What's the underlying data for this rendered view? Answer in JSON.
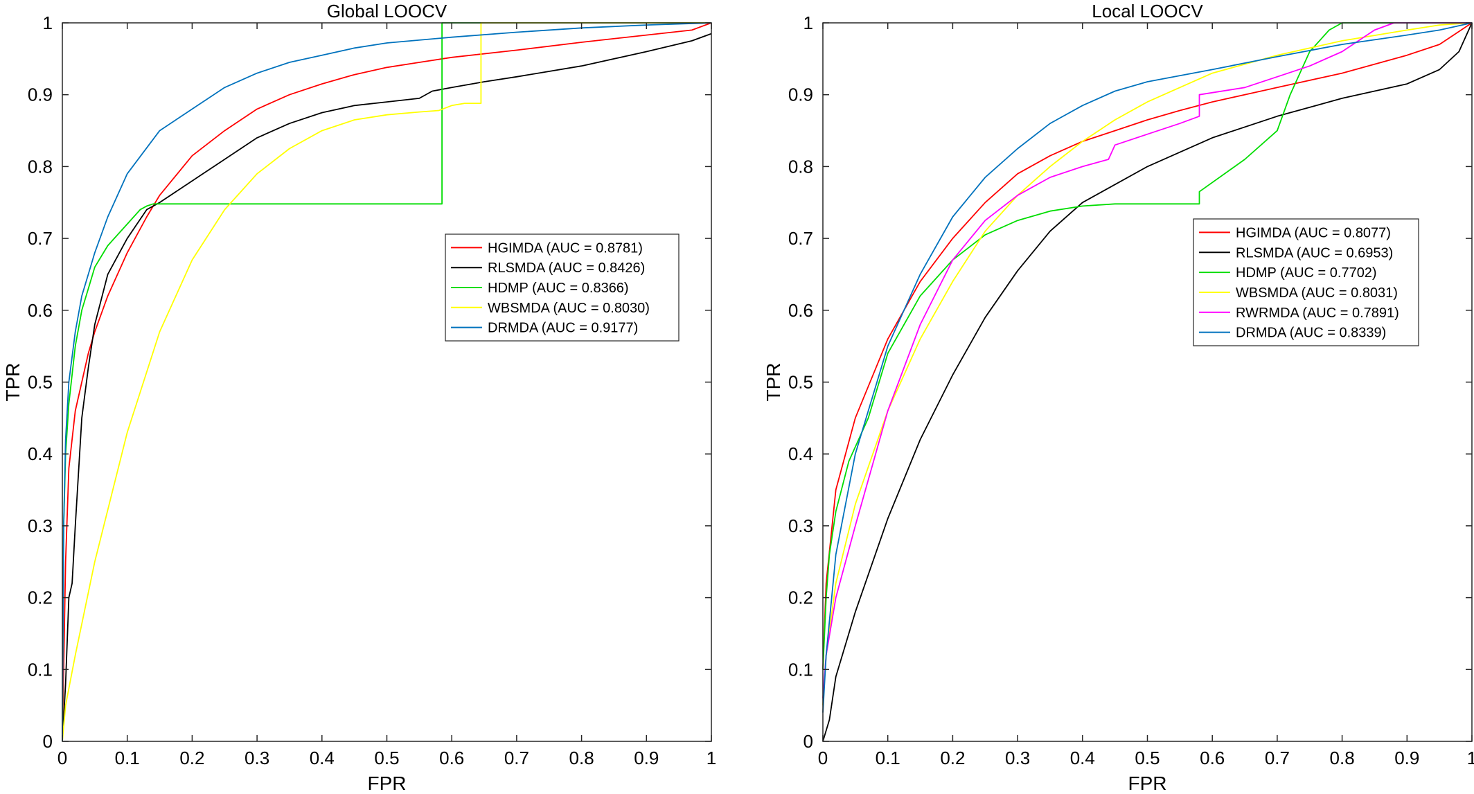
{
  "chart_data": [
    {
      "type": "line",
      "title": "Global LOOCV",
      "xlabel": "FPR",
      "ylabel": "TPR",
      "xlim": [
        0,
        1
      ],
      "ylim": [
        0,
        1
      ],
      "xticks": [
        "0",
        "0.1",
        "0.2",
        "0.3",
        "0.4",
        "0.5",
        "0.6",
        "0.7",
        "0.8",
        "0.9",
        "1"
      ],
      "yticks": [
        "0",
        "0.1",
        "0.2",
        "0.3",
        "0.4",
        "0.5",
        "0.6",
        "0.7",
        "0.8",
        "0.9",
        "1"
      ],
      "grid": false,
      "legend_position": "right-middle",
      "series": [
        {
          "name": "HGIMDA (AUC = 0.8781)",
          "color": "#ff0000",
          "x": [
            0,
            0.005,
            0.01,
            0.02,
            0.03,
            0.04,
            0.05,
            0.07,
            0.1,
            0.13,
            0.15,
            0.2,
            0.25,
            0.3,
            0.35,
            0.4,
            0.45,
            0.5,
            0.55,
            0.6,
            0.7,
            0.8,
            0.9,
            0.97,
            1
          ],
          "y": [
            0,
            0.25,
            0.38,
            0.46,
            0.5,
            0.54,
            0.57,
            0.62,
            0.68,
            0.73,
            0.76,
            0.815,
            0.85,
            0.88,
            0.9,
            0.915,
            0.928,
            0.938,
            0.945,
            0.952,
            0.962,
            0.973,
            0.983,
            0.99,
            1
          ]
        },
        {
          "name": "RLSMDA (AUC = 0.8426)",
          "color": "#000000",
          "x": [
            0,
            0.005,
            0.01,
            0.015,
            0.02,
            0.03,
            0.04,
            0.05,
            0.07,
            0.1,
            0.13,
            0.15,
            0.2,
            0.25,
            0.3,
            0.35,
            0.4,
            0.45,
            0.5,
            0.55,
            0.57,
            0.6,
            0.65,
            0.7,
            0.8,
            0.9,
            0.97,
            1
          ],
          "y": [
            0,
            0.08,
            0.2,
            0.22,
            0.3,
            0.45,
            0.52,
            0.58,
            0.65,
            0.7,
            0.74,
            0.75,
            0.78,
            0.81,
            0.84,
            0.86,
            0.875,
            0.885,
            0.89,
            0.895,
            0.905,
            0.91,
            0.918,
            0.925,
            0.94,
            0.96,
            0.975,
            0.985
          ]
        },
        {
          "name": "HDMP (AUC = 0.8366)",
          "color": "#00dd00",
          "x": [
            0,
            0.002,
            0.005,
            0.01,
            0.02,
            0.03,
            0.04,
            0.05,
            0.07,
            0.1,
            0.12,
            0.13,
            0.14,
            0.2,
            0.3,
            0.4,
            0.5,
            0.585,
            0.585,
            0.65,
            0.7,
            0.8,
            0.9,
            1
          ],
          "y": [
            0,
            0.3,
            0.4,
            0.47,
            0.55,
            0.6,
            0.63,
            0.66,
            0.69,
            0.72,
            0.74,
            0.745,
            0.748,
            0.748,
            0.748,
            0.748,
            0.748,
            0.748,
            1,
            1,
            1,
            1,
            1,
            1
          ]
        },
        {
          "name": "WBSMDA (AUC = 0.8030)",
          "color": "#ffff00",
          "x": [
            0,
            0.005,
            0.02,
            0.05,
            0.1,
            0.15,
            0.2,
            0.25,
            0.3,
            0.35,
            0.4,
            0.45,
            0.5,
            0.55,
            0.58,
            0.6,
            0.62,
            0.645,
            0.645,
            0.7,
            0.8,
            0.9,
            1
          ],
          "y": [
            0,
            0.05,
            0.12,
            0.25,
            0.43,
            0.57,
            0.67,
            0.74,
            0.79,
            0.825,
            0.85,
            0.865,
            0.872,
            0.876,
            0.878,
            0.885,
            0.888,
            0.888,
            1,
            1,
            1,
            1,
            1
          ]
        },
        {
          "name": "DRMDA (AUC = 0.9177)",
          "color": "#0072bd",
          "x": [
            0,
            0.002,
            0.005,
            0.01,
            0.02,
            0.03,
            0.04,
            0.05,
            0.07,
            0.1,
            0.15,
            0.2,
            0.25,
            0.3,
            0.35,
            0.4,
            0.45,
            0.5,
            0.6,
            0.7,
            0.8,
            0.9,
            1
          ],
          "y": [
            0,
            0.3,
            0.42,
            0.5,
            0.57,
            0.62,
            0.65,
            0.68,
            0.73,
            0.79,
            0.85,
            0.88,
            0.91,
            0.93,
            0.945,
            0.955,
            0.965,
            0.972,
            0.98,
            0.987,
            0.993,
            0.997,
            1
          ]
        }
      ]
    },
    {
      "type": "line",
      "title": "Local LOOCV",
      "xlabel": "FPR",
      "ylabel": "TPR",
      "xlim": [
        0,
        1
      ],
      "ylim": [
        0,
        1
      ],
      "xticks": [
        "0",
        "0.1",
        "0.2",
        "0.3",
        "0.4",
        "0.5",
        "0.6",
        "0.7",
        "0.8",
        "0.9",
        "1"
      ],
      "yticks": [
        "0",
        "0.1",
        "0.2",
        "0.3",
        "0.4",
        "0.5",
        "0.6",
        "0.7",
        "0.8",
        "0.9",
        "1"
      ],
      "grid": false,
      "legend_position": "right-middle",
      "series": [
        {
          "name": "HGIMDA (AUC = 0.8077)",
          "color": "#ff0000",
          "x": [
            0,
            0.005,
            0.02,
            0.05,
            0.1,
            0.15,
            0.2,
            0.25,
            0.3,
            0.35,
            0.4,
            0.45,
            0.5,
            0.55,
            0.6,
            0.7,
            0.8,
            0.9,
            0.95,
            1
          ],
          "y": [
            0.1,
            0.22,
            0.35,
            0.45,
            0.56,
            0.64,
            0.7,
            0.75,
            0.79,
            0.815,
            0.835,
            0.85,
            0.865,
            0.878,
            0.89,
            0.91,
            0.93,
            0.955,
            0.97,
            1
          ]
        },
        {
          "name": "RLSMDA (AUC = 0.6953)",
          "color": "#000000",
          "x": [
            0,
            0.01,
            0.02,
            0.05,
            0.1,
            0.15,
            0.2,
            0.25,
            0.3,
            0.35,
            0.4,
            0.45,
            0.5,
            0.55,
            0.6,
            0.7,
            0.8,
            0.9,
            0.95,
            0.98,
            1
          ],
          "y": [
            0,
            0.03,
            0.09,
            0.18,
            0.31,
            0.42,
            0.51,
            0.59,
            0.655,
            0.71,
            0.75,
            0.775,
            0.8,
            0.82,
            0.84,
            0.87,
            0.895,
            0.915,
            0.935,
            0.96,
            1
          ]
        },
        {
          "name": "HDMP (AUC = 0.7702)",
          "color": "#00dd00",
          "x": [
            0,
            0.005,
            0.01,
            0.02,
            0.04,
            0.07,
            0.1,
            0.15,
            0.2,
            0.25,
            0.3,
            0.35,
            0.4,
            0.45,
            0.5,
            0.58,
            0.58,
            0.65,
            0.7,
            0.72,
            0.75,
            0.78,
            0.8,
            0.9,
            1
          ],
          "y": [
            0.1,
            0.2,
            0.26,
            0.32,
            0.39,
            0.45,
            0.54,
            0.62,
            0.67,
            0.705,
            0.725,
            0.738,
            0.745,
            0.748,
            0.748,
            0.748,
            0.765,
            0.81,
            0.85,
            0.9,
            0.96,
            0.99,
            1,
            1,
            1
          ]
        },
        {
          "name": "WBSMDA (AUC = 0.8031)",
          "color": "#ffff00",
          "x": [
            0,
            0.005,
            0.02,
            0.05,
            0.1,
            0.15,
            0.2,
            0.25,
            0.3,
            0.35,
            0.4,
            0.45,
            0.5,
            0.55,
            0.6,
            0.7,
            0.8,
            0.9,
            0.95,
            1
          ],
          "y": [
            0.05,
            0.12,
            0.22,
            0.33,
            0.46,
            0.56,
            0.64,
            0.71,
            0.76,
            0.8,
            0.835,
            0.865,
            0.89,
            0.91,
            0.93,
            0.955,
            0.975,
            0.99,
            0.997,
            1
          ]
        },
        {
          "name": "RWRMDA (AUC = 0.7891)",
          "color": "#ff00ff",
          "x": [
            0,
            0.005,
            0.02,
            0.05,
            0.1,
            0.15,
            0.2,
            0.25,
            0.3,
            0.35,
            0.4,
            0.44,
            0.45,
            0.5,
            0.55,
            0.58,
            0.58,
            0.65,
            0.7,
            0.75,
            0.8,
            0.85,
            0.88,
            1
          ],
          "y": [
            0.06,
            0.12,
            0.2,
            0.3,
            0.46,
            0.58,
            0.67,
            0.725,
            0.76,
            0.785,
            0.8,
            0.81,
            0.83,
            0.845,
            0.86,
            0.87,
            0.9,
            0.91,
            0.925,
            0.94,
            0.96,
            0.99,
            1,
            1
          ]
        },
        {
          "name": "DRMDA (AUC = 0.8339)",
          "color": "#0072bd",
          "x": [
            0,
            0.005,
            0.02,
            0.05,
            0.1,
            0.15,
            0.2,
            0.25,
            0.3,
            0.35,
            0.4,
            0.45,
            0.5,
            0.6,
            0.7,
            0.8,
            0.9,
            0.95,
            1
          ],
          "y": [
            0.04,
            0.12,
            0.26,
            0.4,
            0.55,
            0.65,
            0.73,
            0.785,
            0.825,
            0.86,
            0.885,
            0.905,
            0.918,
            0.935,
            0.953,
            0.97,
            0.983,
            0.99,
            1
          ]
        }
      ]
    }
  ]
}
